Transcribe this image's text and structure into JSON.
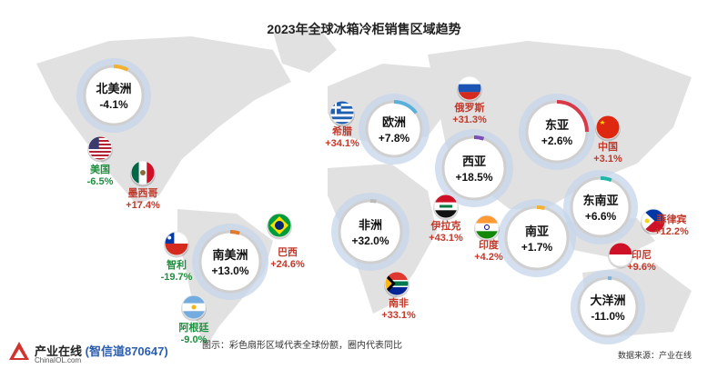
{
  "title": "2023年全球冰箱冷柜销售区域趋势",
  "note": "图示：彩色扇形区域代表全球份额，圈内代表同比",
  "source": "数据来源：产业在线",
  "logo": {
    "name": "产业在线",
    "handle": "(智信道870647)",
    "site": "ChinaIOL.com"
  },
  "colors": {
    "positive": "#c0392b",
    "negative": "#1e8f3e",
    "halo": "#c5d6ea",
    "ring": "#cfcfcf"
  },
  "chart_data": {
    "type": "bubble-map",
    "regions": [
      {
        "name": "北美洲",
        "yoy": "-4.1%",
        "share_color": "#f2b134",
        "share": 0.08
      },
      {
        "name": "欧洲",
        "yoy": "+7.8%",
        "share_color": "#5bb0d9",
        "share": 0.15
      },
      {
        "name": "西亚",
        "yoy": "+18.5%",
        "share_color": "#7b4fb5",
        "share": 0.05
      },
      {
        "name": "东亚",
        "yoy": "+2.6%",
        "share_color": "#d93a4a",
        "share": 0.25
      },
      {
        "name": "非洲",
        "yoy": "+32.0%",
        "share_color": "#bbbbbb",
        "share": 0.03
      },
      {
        "name": "南亚",
        "yoy": "+1.7%",
        "share_color": "#f2b134",
        "share": 0.04
      },
      {
        "name": "东南亚",
        "yoy": "+6.6%",
        "share_color": "#1fb5a8",
        "share": 0.06
      },
      {
        "name": "南美洲",
        "yoy": "+13.0%",
        "share_color": "#e07a2e",
        "share": 0.05
      },
      {
        "name": "大洋洲",
        "yoy": "-11.0%",
        "share_color": "#7bb0d9",
        "share": 0.02
      }
    ],
    "countries": [
      {
        "name": "希腊",
        "yoy": "+34.1%",
        "flag": "greece-flag"
      },
      {
        "name": "俄罗斯",
        "yoy": "+31.3%",
        "flag": "russia-flag"
      },
      {
        "name": "中国",
        "yoy": "+3.1%",
        "flag": "china-flag"
      },
      {
        "name": "美国",
        "yoy": "-6.5%",
        "flag": "usa-flag"
      },
      {
        "name": "墨西哥",
        "yoy": "+17.4%",
        "flag": "mexico-flag"
      },
      {
        "name": "伊拉克",
        "yoy": "+43.1%",
        "flag": "iraq-flag"
      },
      {
        "name": "印度",
        "yoy": "+4.2%",
        "flag": "india-flag"
      },
      {
        "name": "菲律宾",
        "yoy": "+12.2%",
        "flag": "philippines-flag"
      },
      {
        "name": "印尼",
        "yoy": "+9.6%",
        "flag": "indonesia-flag"
      },
      {
        "name": "巴西",
        "yoy": "+24.6%",
        "flag": "brazil-flag"
      },
      {
        "name": "智利",
        "yoy": "-19.7%",
        "flag": "chile-flag"
      },
      {
        "name": "阿根廷",
        "yoy": "-9.0%",
        "flag": "argentina-flag"
      },
      {
        "name": "南非",
        "yoy": "+33.1%",
        "flag": "south-africa-flag"
      }
    ]
  }
}
